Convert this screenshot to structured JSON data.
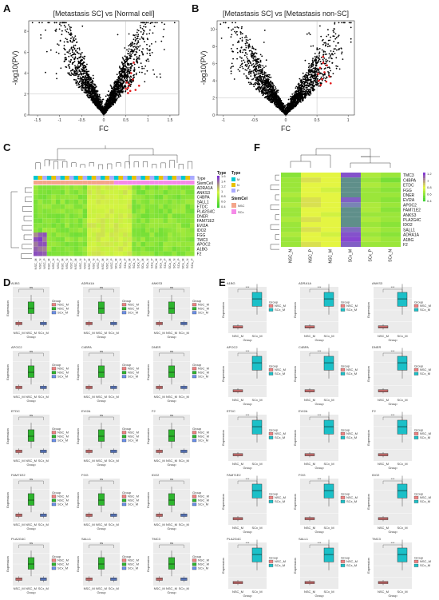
{
  "panels": {
    "A": "A",
    "B": "B",
    "C": "C",
    "D": "D",
    "E": "E",
    "F": "F"
  },
  "chart_data": [
    {
      "id": "A",
      "type": "scatter",
      "title": "[Metastasis SC] vs [Normal cell]",
      "xlabel": "FC",
      "ylabel": "-log10(PV)",
      "xlim": [
        -1.7,
        1.7
      ],
      "xticks": [
        -1.5,
        -1,
        -0.5,
        0,
        0.5,
        1,
        1.5
      ],
      "ylim": [
        0,
        9
      ],
      "yticks": [
        0,
        2,
        4,
        6,
        8
      ],
      "threshold_x": 0.5,
      "threshold_y": 2,
      "colors": {
        "points": "#000000",
        "highlight": "#e31a1c",
        "threshold": "#bdbdbd"
      },
      "series": [
        {
          "name": "",
          "points": "volcano"
        }
      ],
      "highlight": [
        [
          0.52,
          3.1
        ],
        [
          0.55,
          2.6
        ],
        [
          0.6,
          2.3
        ],
        [
          0.62,
          4.0
        ],
        [
          0.68,
          5.0
        ],
        [
          0.58,
          2.9
        ],
        [
          0.72,
          2.4
        ],
        [
          0.66,
          3.4
        ],
        [
          0.55,
          2.1
        ],
        [
          0.8,
          2.8
        ],
        [
          0.5,
          2.5
        ]
      ]
    },
    {
      "id": "B",
      "type": "scatter",
      "title": "[Metastasis SC] vs [Metastasis non-SC]",
      "xlabel": "FC",
      "ylabel": "-log10(PV)",
      "xlim": [
        -1.1,
        1.1
      ],
      "xticks": [
        -1,
        -0.5,
        0,
        0.5,
        1
      ],
      "ylim": [
        0,
        11
      ],
      "yticks": [
        0,
        2,
        4,
        6,
        8,
        10
      ],
      "threshold_x": 0.5,
      "threshold_y": 2,
      "colors": {
        "points": "#000000",
        "highlight": "#e31a1c",
        "threshold": "#bdbdbd"
      },
      "highlight": [
        [
          0.52,
          4.8
        ],
        [
          0.55,
          5.5
        ],
        [
          0.58,
          4.2
        ],
        [
          0.6,
          6.1
        ],
        [
          0.62,
          5.0
        ],
        [
          0.65,
          3.9
        ],
        [
          0.56,
          3.5
        ],
        [
          0.7,
          4.5
        ],
        [
          0.6,
          6.8
        ],
        [
          0.53,
          4.0
        ],
        [
          0.66,
          5.8
        ],
        [
          0.72,
          3.7
        ]
      ]
    },
    {
      "id": "C",
      "type": "heatmap",
      "legend_title": "Type",
      "legend_ticks": [
        "1.6",
        "1.4",
        "1.2",
        "1",
        "0.8",
        "0.6",
        "0.4"
      ],
      "type_legend": {
        "title": "Type",
        "items": [
          "M",
          "N",
          "P"
        ]
      },
      "stemcell_legend": {
        "title": "StemCell",
        "items": [
          "NSC",
          "SCx"
        ]
      },
      "annotation_rows": [
        "Type",
        "StemCell"
      ],
      "genes": [
        "ADRA1A",
        "ANKS3",
        "C4BPA",
        "SALL1",
        "ETDC",
        "PLA2G4C",
        "DNER",
        "FAM71E2",
        "EVI2A",
        "IDO2",
        "FGG",
        "TMC3",
        "APOC2",
        "A1BG",
        "F2"
      ],
      "n_columns": 36,
      "colors": {
        "low": "#2fd12f",
        "mid": "#d6f542",
        "high": "#7b2bd6",
        "typeM": "#00c8d0",
        "typeN": "#e8c100",
        "typeP": "#aaaaff",
        "NSC": "#f4a58a",
        "SCx": "#f58ae8"
      }
    },
    {
      "id": "F",
      "type": "heatmap",
      "genes": [
        "TMC3",
        "C4BPA",
        "ETDC",
        "FGG",
        "DNER",
        "EVI2A",
        "APOC2",
        "FAM71E2",
        "ANKS3",
        "PLA2G4C",
        "IDO2",
        "SALL1",
        "ADRA1A",
        "A1BG",
        "F2"
      ],
      "columns": [
        "NSC_N",
        "NSC_P",
        "NSC_M",
        "SCx_M",
        "SCx_P",
        "SCx_N"
      ],
      "legend_ticks": [
        "1.2",
        "1",
        "0.8",
        "0.6",
        "0.4"
      ]
    },
    {
      "id": "D",
      "type": "boxplot",
      "xlabel": "Group",
      "ylabel": "Expression",
      "legend_title": "Group",
      "groups": [
        "NSC_M",
        "NSC_M",
        "SCx_M"
      ],
      "colors": [
        "#f08080",
        "#2db52d",
        "#6a8fe8"
      ],
      "genes": [
        "A1BG",
        "ADRA1A",
        "ANKS3",
        "APOC2",
        "C4BPA",
        "DNER",
        "ETDC",
        "EVI2A",
        "F2",
        "FAM71E2",
        "FGG",
        "IDO2",
        "PLA2G4C",
        "SALL1",
        "TMC3"
      ],
      "sig": "ns"
    },
    {
      "id": "E",
      "type": "boxplot",
      "xlabel": "Group",
      "ylabel": "Expression",
      "legend_title": "Group",
      "groups": [
        "NSC_M",
        "SCx_M"
      ],
      "colors": [
        "#f08080",
        "#1bc0c8"
      ],
      "genes": [
        "A1BG",
        "ADRA1A",
        "ANKS3",
        "APOC2",
        "C4BPA",
        "DNER",
        "ETDC",
        "EVI2A",
        "F2",
        "FAM71E2",
        "FGG",
        "IDO2",
        "PLA2G4C",
        "SALL1",
        "TMC3"
      ],
      "sig": "***"
    }
  ]
}
